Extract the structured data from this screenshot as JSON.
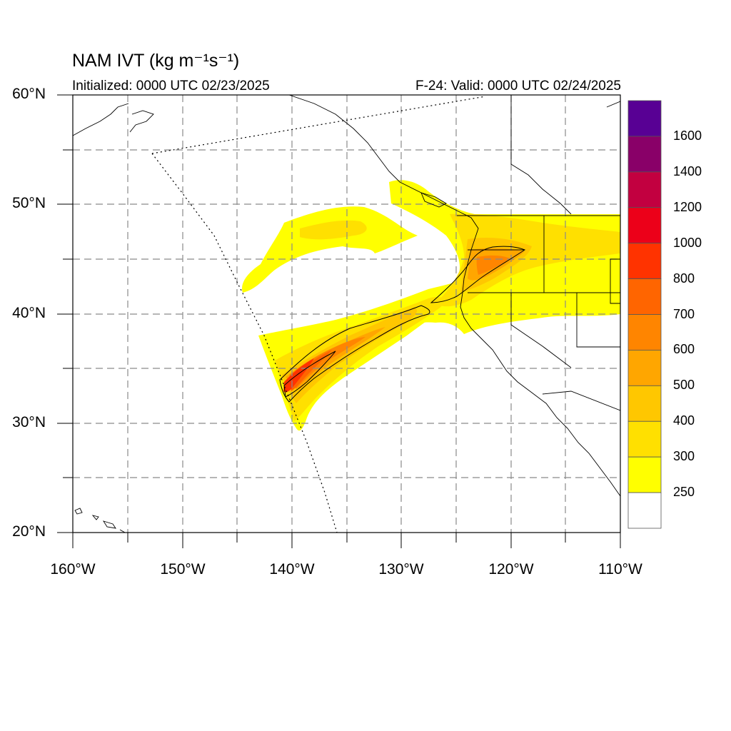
{
  "title": "NAM IVT (kg m⁻¹s⁻¹)",
  "initialized": "Initialized: 0000 UTC 02/23/2025",
  "valid": "F-24: Valid: 0000 UTC 02/24/2025",
  "lat_labels": [
    "60°N",
    "50°N",
    "40°N",
    "30°N",
    "20°N"
  ],
  "lon_labels": [
    "160°W",
    "150°W",
    "140°W",
    "130°W",
    "120°W",
    "110°W"
  ],
  "colorbar": {
    "labels": [
      "1600",
      "1400",
      "1200",
      "1000",
      "800",
      "700",
      "600",
      "500",
      "400",
      "300",
      "250"
    ],
    "colors": [
      "#580094",
      "#890068",
      "#c20040",
      "#ec0019",
      "#ff3300",
      "#ff6500",
      "#ff8500",
      "#ffa600",
      "#ffc700",
      "#ffe000",
      "#ffff00",
      "#ffffff"
    ]
  },
  "map": {
    "lon_range": [
      -160,
      -110
    ],
    "lat_range": [
      20,
      60
    ],
    "grid_interval_deg": 5,
    "field": "Integrated vapor transport",
    "units": "kg m-1 s-1"
  },
  "colors": {
    "grid": "#8a8a8a",
    "coast": "#000000"
  }
}
